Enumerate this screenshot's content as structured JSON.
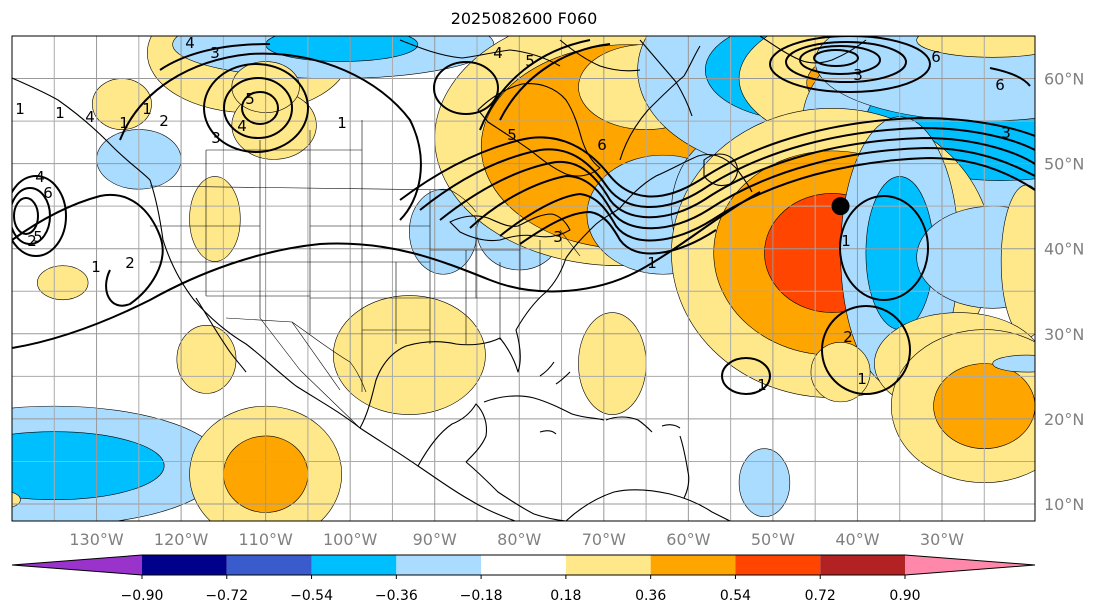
{
  "title": "2025082600 F060",
  "map": {
    "projection": "PlateCarree",
    "extent": {
      "lon_min": -140,
      "lon_max": -19,
      "lat_min": 8,
      "lat_max": 65
    },
    "lat_ticks": [
      {
        "value": 10,
        "label": "10°N"
      },
      {
        "value": 20,
        "label": "20°N"
      },
      {
        "value": 30,
        "label": "30°N"
      },
      {
        "value": 40,
        "label": "40°N"
      },
      {
        "value": 50,
        "label": "50°N"
      },
      {
        "value": 60,
        "label": "60°N"
      }
    ],
    "lon_ticks": [
      {
        "value": -130,
        "label": "130°W"
      },
      {
        "value": -120,
        "label": "120°W"
      },
      {
        "value": -110,
        "label": "110°W"
      },
      {
        "value": -100,
        "label": "100°W"
      },
      {
        "value": -90,
        "label": "90°W"
      },
      {
        "value": -80,
        "label": "80°W"
      },
      {
        "value": -70,
        "label": "70°W"
      },
      {
        "value": -60,
        "label": "60°W"
      },
      {
        "value": -50,
        "label": "50°W"
      },
      {
        "value": -40,
        "label": "40°W"
      },
      {
        "value": -30,
        "label": "30°W"
      }
    ],
    "gridlines": true,
    "marker": {
      "lon": -42,
      "lat": 45,
      "color": "#000000"
    }
  },
  "colorbar": {
    "orientation": "horizontal",
    "extend": "both",
    "labels": [
      "−0.90",
      "−0.72",
      "−0.54",
      "−0.36",
      "−0.18",
      "0.18",
      "0.36",
      "0.54",
      "0.72",
      "0.90"
    ],
    "colors": {
      "below": "#9933cc",
      "bins": [
        "#9933cc",
        "#00008b",
        "#3a5bcc",
        "#00bfff",
        "#aadcff",
        "#ffffff",
        "#ffe88a",
        "#ffa500",
        "#ff4500",
        "#b22222"
      ],
      "above": "#ff88aa"
    }
  },
  "contour_labels": [
    "4",
    "3",
    "5",
    "4",
    "3",
    "1",
    "2",
    "1",
    "1",
    "4",
    "6",
    "5",
    "2",
    "1",
    "4",
    "3",
    "5",
    "6",
    "1",
    "3",
    "6",
    "3",
    "2",
    "1",
    "1",
    "1",
    "2",
    "1",
    "1",
    "5",
    "4",
    "6"
  ],
  "shading": [
    {
      "lon": -112,
      "lat": 63,
      "rx": 24,
      "ry": 14,
      "value": 0.3
    },
    {
      "lon": -102,
      "lat": 64,
      "rx": 38,
      "ry": 8,
      "value": -0.3
    },
    {
      "lon": -101,
      "lat": 64,
      "rx": 18,
      "ry": 4,
      "value": -0.45
    },
    {
      "lon": -127,
      "lat": 57,
      "rx": 7,
      "ry": 6,
      "value": 0.25
    },
    {
      "lon": -109,
      "lat": 54.5,
      "rx": 10,
      "ry": 8,
      "value": 0.3
    },
    {
      "lon": -110,
      "lat": 59,
      "rx": 8,
      "ry": 6,
      "value": 0.3
    },
    {
      "lon": -125,
      "lat": 50.5,
      "rx": 10,
      "ry": 7,
      "value": -0.25
    },
    {
      "lon": -116,
      "lat": 43.5,
      "rx": 6,
      "ry": 10,
      "value": 0.3
    },
    {
      "lon": -134,
      "lat": 36,
      "rx": 6,
      "ry": 4,
      "value": 0.25
    },
    {
      "lon": -117,
      "lat": 27,
      "rx": 7,
      "ry": 8,
      "value": 0.25
    },
    {
      "lon": -93,
      "lat": 27.5,
      "rx": 18,
      "ry": 14,
      "value": 0.3
    },
    {
      "lon": -89,
      "lat": 42,
      "rx": 8,
      "ry": 10,
      "value": -0.25
    },
    {
      "lon": -80,
      "lat": 42,
      "rx": 10,
      "ry": 9,
      "value": -0.3
    },
    {
      "lon": -68,
      "lat": 53,
      "rx": 44,
      "ry": 30,
      "value": 0.3
    },
    {
      "lon": -67,
      "lat": 52,
      "rx": 35,
      "ry": 24,
      "value": 0.45
    },
    {
      "lon": -65,
      "lat": 59,
      "rx": 16,
      "ry": 10,
      "value": 0.3
    },
    {
      "lon": -63,
      "lat": 44,
      "rx": 18,
      "ry": 14,
      "value": -0.3
    },
    {
      "lon": -55,
      "lat": 44.5,
      "rx": 14,
      "ry": 18,
      "value": -0.25
    },
    {
      "lon": -47,
      "lat": 61,
      "rx": 38,
      "ry": 24,
      "value": -0.3
    },
    {
      "lon": -46,
      "lat": 61,
      "rx": 24,
      "ry": 12,
      "value": -0.45
    },
    {
      "lon": -34,
      "lat": 60,
      "rx": 40,
      "ry": 18,
      "value": 0.3
    },
    {
      "lon": -33,
      "lat": 59.5,
      "rx": 26,
      "ry": 10,
      "value": 0.45
    },
    {
      "lon": -24,
      "lat": 55,
      "rx": 45,
      "ry": 26,
      "value": -0.3
    },
    {
      "lon": -23,
      "lat": 55,
      "rx": 32,
      "ry": 14,
      "value": -0.45
    },
    {
      "lon": -25,
      "lat": 62,
      "rx": 40,
      "ry": 14,
      "value": -0.3
    },
    {
      "lon": -24,
      "lat": 64.5,
      "rx": 18,
      "ry": 4,
      "value": 0.3
    },
    {
      "lon": -43,
      "lat": 39.5,
      "rx": 38,
      "ry": 34,
      "value": 0.3
    },
    {
      "lon": -43,
      "lat": 39.5,
      "rx": 28,
      "ry": 24,
      "value": 0.45
    },
    {
      "lon": -43,
      "lat": 39.5,
      "rx": 16,
      "ry": 14,
      "value": 0.6
    },
    {
      "lon": -35,
      "lat": 39.5,
      "rx": 14,
      "ry": 32,
      "value": -0.3
    },
    {
      "lon": -35,
      "lat": 39.5,
      "rx": 8,
      "ry": 18,
      "value": -0.45
    },
    {
      "lon": -24,
      "lat": 39,
      "rx": 18,
      "ry": 12,
      "value": -0.3
    },
    {
      "lon": -20,
      "lat": 38.5,
      "rx": 6,
      "ry": 18,
      "value": 0.3
    },
    {
      "lon": -69,
      "lat": 26.5,
      "rx": 8,
      "ry": 12,
      "value": 0.3
    },
    {
      "lon": -42,
      "lat": 25.5,
      "rx": 7,
      "ry": 7,
      "value": 0.25
    },
    {
      "lon": -28,
      "lat": 26.5,
      "rx": 20,
      "ry": 12,
      "value": 0.3
    },
    {
      "lon": -28,
      "lat": 26.5,
      "rx": 10,
      "ry": 6,
      "value": 0.45
    },
    {
      "lon": -25,
      "lat": 21.5,
      "rx": 22,
      "ry": 18,
      "value": 0.3
    },
    {
      "lon": -25,
      "lat": 21.5,
      "rx": 12,
      "ry": 10,
      "value": 0.45
    },
    {
      "lon": -135,
      "lat": 14.5,
      "rx": 40,
      "ry": 14,
      "value": -0.3
    },
    {
      "lon": -135,
      "lat": 14.5,
      "rx": 26,
      "ry": 8,
      "value": -0.45
    },
    {
      "lon": -110,
      "lat": 13.5,
      "rx": 18,
      "ry": 16,
      "value": 0.3
    },
    {
      "lon": -110,
      "lat": 13.5,
      "rx": 10,
      "ry": 9,
      "value": 0.45
    },
    {
      "lon": -51,
      "lat": 12.5,
      "rx": 6,
      "ry": 8,
      "value": -0.25
    },
    {
      "lon": -141,
      "lat": 10.5,
      "rx": 4,
      "ry": 2,
      "value": 0.3
    },
    {
      "lon": -20,
      "lat": 26.5,
      "rx": 8,
      "ry": 2,
      "value": -0.2
    }
  ]
}
